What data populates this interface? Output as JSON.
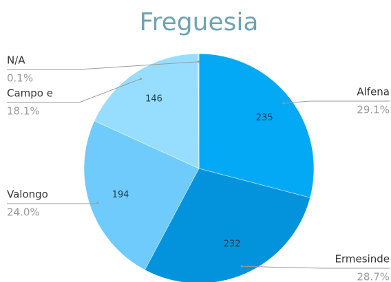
{
  "chart_data": {
    "type": "pie",
    "title": "Freguesia",
    "categories": [
      "Alfena",
      "Ermesinde",
      "Valongo",
      "Campo e",
      "N/A"
    ],
    "values": [
      235,
      232,
      194,
      146,
      1
    ],
    "percent_labels": [
      "29.1%",
      "28.7%",
      "24.0%",
      "18.1%",
      "0.1%"
    ],
    "colors": [
      "#03a9f4",
      "#0393dd",
      "#6fcbfb",
      "#97defe",
      "#b8e9ff"
    ]
  }
}
